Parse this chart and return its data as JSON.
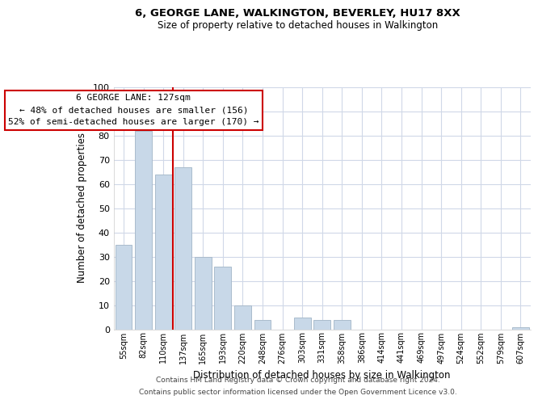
{
  "title": "6, GEORGE LANE, WALKINGTON, BEVERLEY, HU17 8XX",
  "subtitle": "Size of property relative to detached houses in Walkington",
  "xlabel": "Distribution of detached houses by size in Walkington",
  "ylabel": "Number of detached properties",
  "categories": [
    "55sqm",
    "82sqm",
    "110sqm",
    "137sqm",
    "165sqm",
    "193sqm",
    "220sqm",
    "248sqm",
    "276sqm",
    "303sqm",
    "331sqm",
    "358sqm",
    "386sqm",
    "414sqm",
    "441sqm",
    "469sqm",
    "497sqm",
    "524sqm",
    "552sqm",
    "579sqm",
    "607sqm"
  ],
  "values": [
    35,
    82,
    64,
    67,
    30,
    26,
    10,
    4,
    0,
    5,
    4,
    4,
    0,
    0,
    0,
    0,
    0,
    0,
    0,
    0,
    1
  ],
  "bar_color": "#c8d8e8",
  "bar_edge_color": "#aabccc",
  "vline_index": 2,
  "vline_color": "#cc0000",
  "ylim": [
    0,
    100
  ],
  "yticks": [
    0,
    10,
    20,
    30,
    40,
    50,
    60,
    70,
    80,
    90,
    100
  ],
  "annotation_title": "6 GEORGE LANE: 127sqm",
  "annotation_line1": "← 48% of detached houses are smaller (156)",
  "annotation_line2": "52% of semi-detached houses are larger (170) →",
  "annotation_box_color": "#ffffff",
  "annotation_box_edge_color": "#cc0000",
  "footer_line1": "Contains HM Land Registry data © Crown copyright and database right 2024.",
  "footer_line2": "Contains public sector information licensed under the Open Government Licence v3.0.",
  "background_color": "#ffffff",
  "grid_color": "#d0d8e8",
  "title_fontsize": 9.5,
  "subtitle_fontsize": 8.5,
  "footer_fontsize": 6.5
}
